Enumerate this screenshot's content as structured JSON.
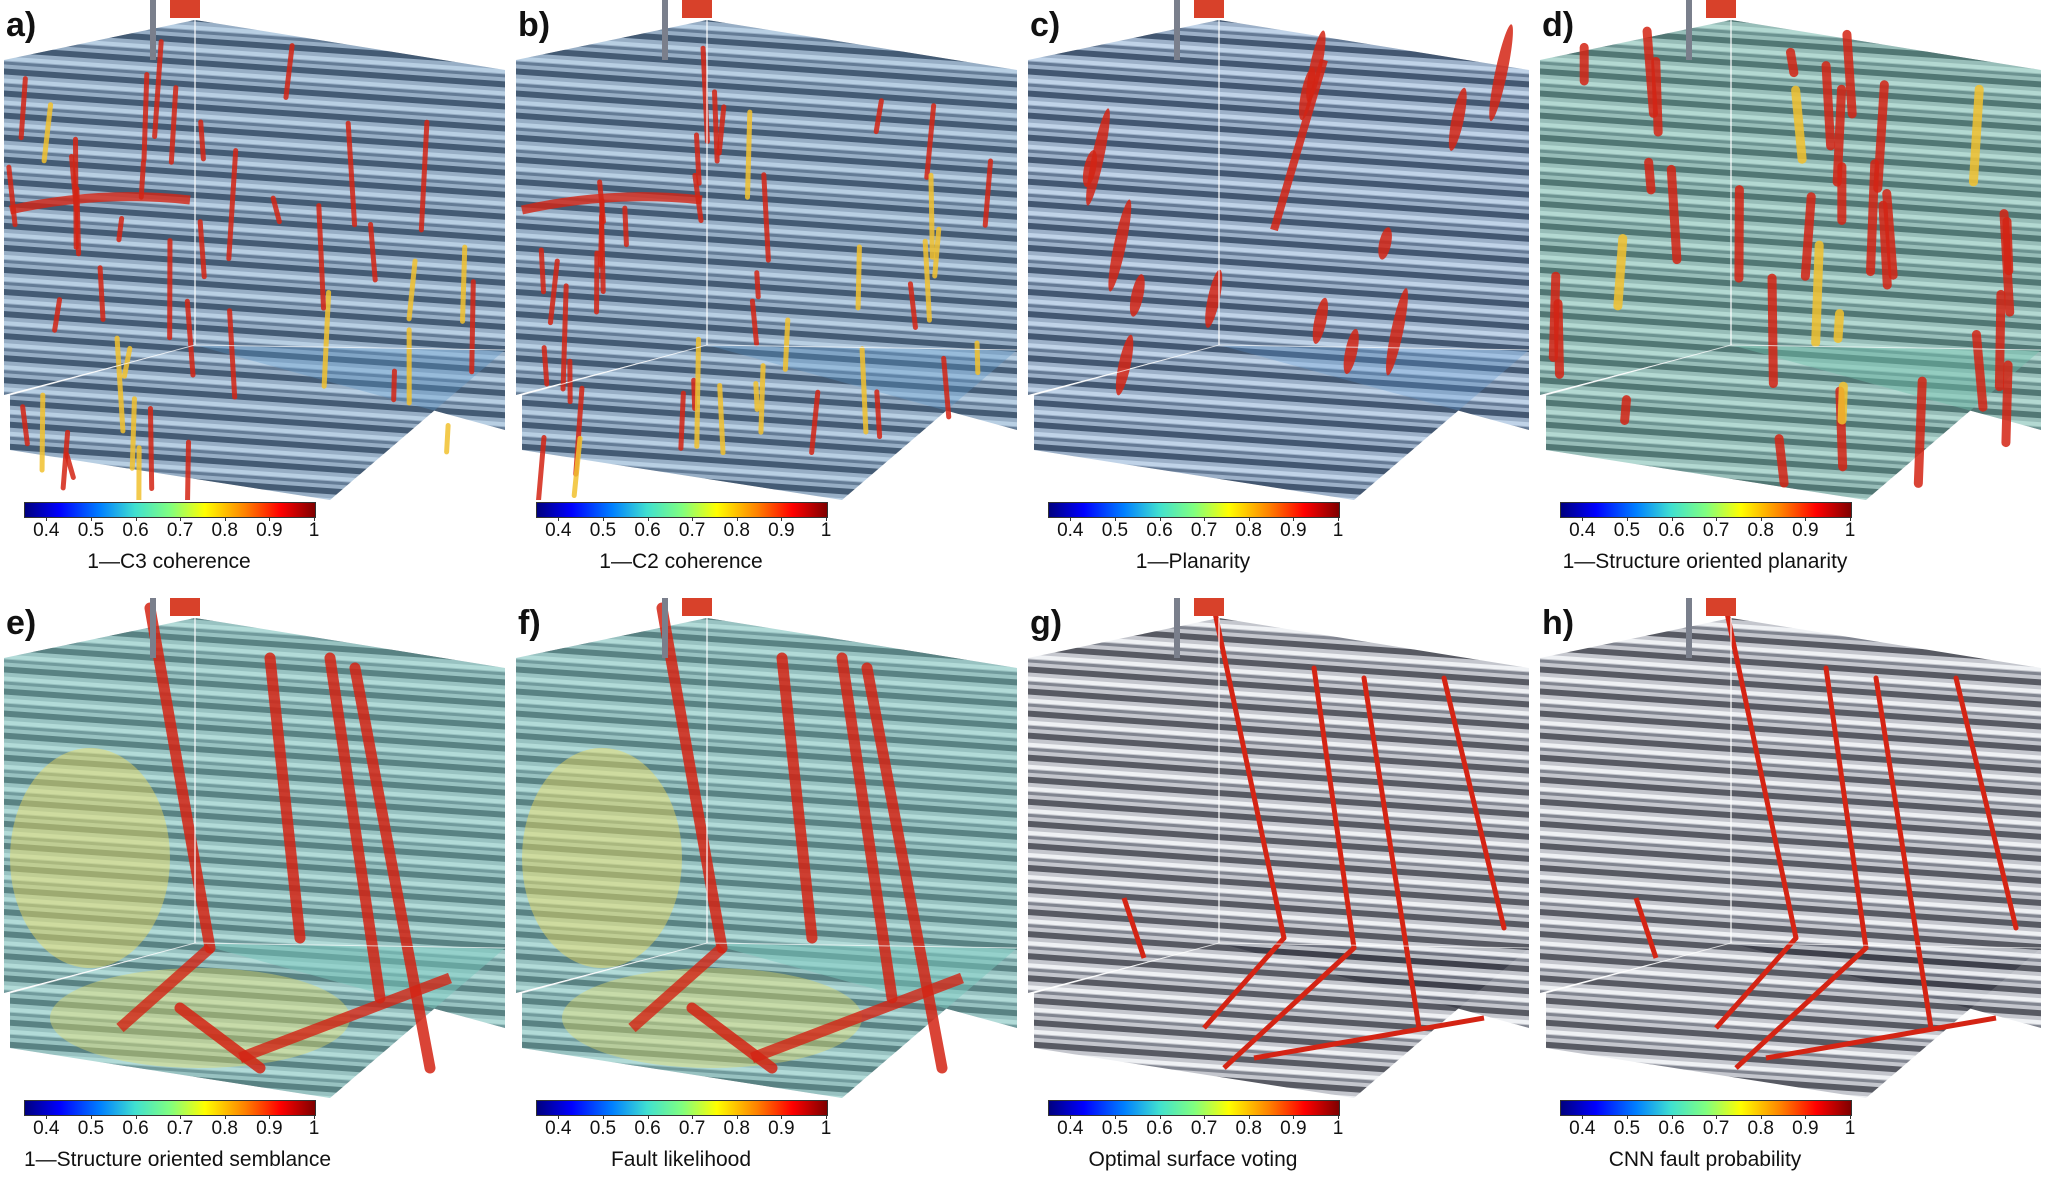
{
  "panels": [
    {
      "letter": "a)",
      "caption": "1—C3 coherence",
      "style": "noisy"
    },
    {
      "letter": "b)",
      "caption": "1—C2 coherence",
      "style": "noisy"
    },
    {
      "letter": "c)",
      "caption": "1—Planarity",
      "style": "sparse"
    },
    {
      "letter": "d)",
      "caption": "1—Structure oriented planarity",
      "style": "dense"
    },
    {
      "letter": "e)",
      "caption": "1—Structure oriented semblance",
      "style": "smooth"
    },
    {
      "letter": "f)",
      "caption": "Fault likelihood",
      "style": "smooth"
    },
    {
      "letter": "g)",
      "caption": "Optimal surface voting",
      "style": "thin"
    },
    {
      "letter": "h)",
      "caption": "CNN fault probability",
      "style": "thin"
    }
  ],
  "colorbar": {
    "ticks": [
      "0.4",
      "0.5",
      "0.6",
      "0.7",
      "0.8",
      "0.9",
      "1"
    ],
    "range": [
      0.35,
      1.0
    ]
  }
}
